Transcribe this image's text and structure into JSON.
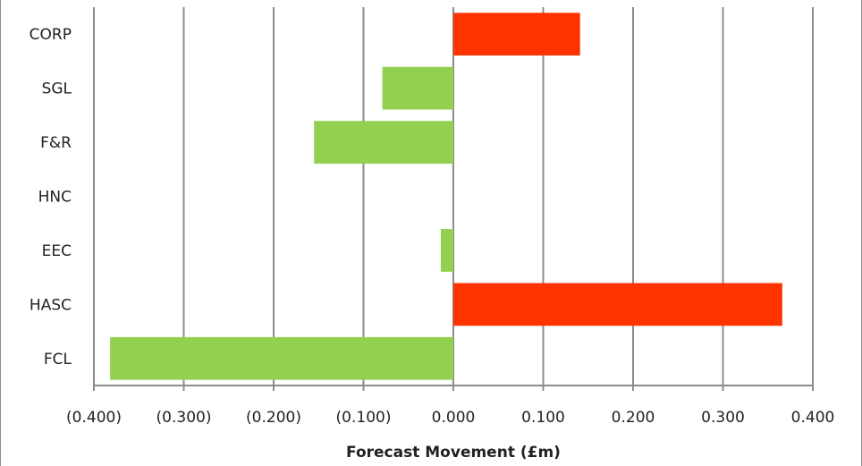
{
  "chart_data": {
    "type": "bar",
    "orientation": "horizontal",
    "categories": [
      "CORP",
      "SGL",
      "F&R",
      "HNC",
      "EEC",
      "HASC",
      "FCL"
    ],
    "values": [
      0.141,
      -0.079,
      -0.155,
      0.0,
      -0.014,
      0.366,
      -0.382
    ],
    "xlabel": "Forecast Movement (£m)",
    "ylabel": "",
    "xlim": [
      -0.4,
      0.4
    ],
    "xticks": [
      -0.4,
      -0.3,
      -0.2,
      -0.1,
      0.0,
      0.1,
      0.2,
      0.3,
      0.4
    ],
    "xtick_labels": [
      "(0.400)",
      "(0.300)",
      "(0.200)",
      "(0.100)",
      "0.000",
      "0.100",
      "0.200",
      "0.300",
      "0.400"
    ],
    "grid": "vertical",
    "legend": "none",
    "colors": {
      "positive": "#ff3300",
      "negative": "#92d050",
      "grid": "#8c8c8c",
      "axis": "#8c8c8c"
    }
  }
}
